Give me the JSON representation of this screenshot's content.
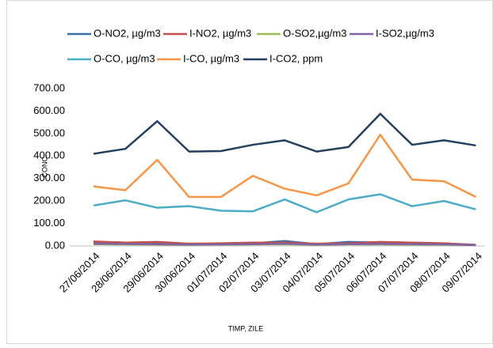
{
  "chart_data": {
    "type": "line",
    "x_label": "TIMP, ZILE",
    "y_label": "CONC.",
    "categories": [
      "27/06/2014",
      "28/06/2014",
      "29/06/2014",
      "30/06/2014",
      "01/07/2014",
      "02/07/2014",
      "03/07/2014",
      "04/07/2014",
      "05/07/2014",
      "06/07/2014",
      "07/07/2014",
      "08/07/2014",
      "09/07/2014"
    ],
    "series": [
      {
        "name": "O-NO2, µg/m3",
        "color": "#3a6ea5",
        "values": [
          18,
          15,
          10,
          8,
          10,
          12,
          22,
          8,
          18,
          15,
          12,
          10,
          5
        ]
      },
      {
        "name": "I-NO2, µg/m3",
        "color": "#c0504d",
        "values": [
          20,
          15,
          18,
          10,
          12,
          15,
          15,
          10,
          12,
          18,
          15,
          12,
          5
        ]
      },
      {
        "name": "O-SO2,µg/m3",
        "color": "#9bbb59",
        "values": [
          8,
          7,
          6,
          5,
          6,
          7,
          8,
          5,
          7,
          7,
          6,
          6,
          4
        ]
      },
      {
        "name": "I-SO2,µg/m3",
        "color": "#8064a2",
        "values": [
          10,
          9,
          8,
          6,
          7,
          8,
          10,
          6,
          8,
          9,
          8,
          7,
          4
        ]
      },
      {
        "name": "O-CO, µg/m3",
        "color": "#4bacc6",
        "values": [
          180,
          203,
          170,
          177,
          157,
          154,
          207,
          150,
          207,
          230,
          177,
          200,
          163
        ]
      },
      {
        "name": "I-CO, µg/m3",
        "color": "#f79646",
        "values": [
          265,
          248,
          383,
          218,
          218,
          312,
          255,
          225,
          278,
          495,
          295,
          288,
          218
        ]
      },
      {
        "name": "I-CO2, ppm",
        "color": "#243f60",
        "values": [
          410,
          432,
          555,
          420,
          422,
          450,
          470,
          420,
          440,
          588,
          450,
          470,
          447
        ]
      }
    ],
    "ylim": [
      0,
      700
    ],
    "yticks": [
      {
        "value": 0,
        "label": "0.00"
      },
      {
        "value": 100,
        "label": "100.00"
      },
      {
        "value": 200,
        "label": "200.00"
      },
      {
        "value": 300,
        "label": "300.00"
      },
      {
        "value": 400,
        "label": "400.00"
      },
      {
        "value": 500,
        "label": "500.00"
      },
      {
        "value": 600,
        "label": "600.00"
      },
      {
        "value": 700,
        "label": "700.00"
      }
    ]
  }
}
